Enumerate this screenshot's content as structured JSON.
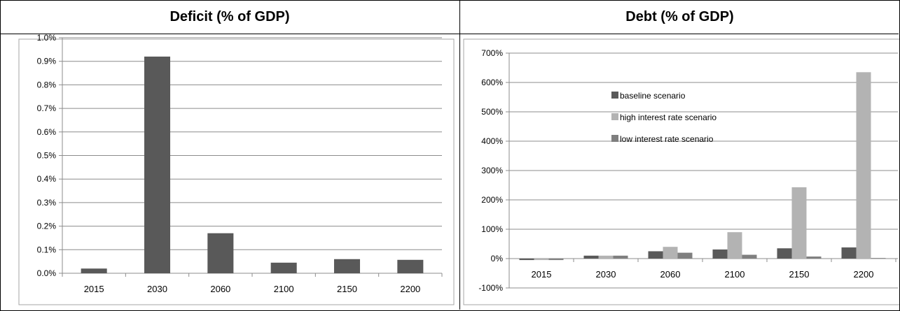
{
  "chart_data": [
    {
      "type": "bar",
      "title": "Deficit  (% of GDP)",
      "categories": [
        "2015",
        "2030",
        "2060",
        "2100",
        "2150",
        "2200"
      ],
      "values": [
        0.0002,
        0.0092,
        0.0017,
        0.00045,
        0.0006,
        0.00057
      ],
      "yticks": [
        "0.0%",
        "0.1%",
        "0.2%",
        "0.3%",
        "0.4%",
        "0.5%",
        "0.6%",
        "0.7%",
        "0.8%",
        "0.9%",
        "1.0%"
      ],
      "ylim": [
        0,
        0.01
      ],
      "grid": true,
      "bar_color": "#595959"
    },
    {
      "type": "bar",
      "title": "Debt (% of GDP)",
      "categories": [
        "2015",
        "2030",
        "2060",
        "2100",
        "2150",
        "2200"
      ],
      "series": [
        {
          "name": "baseline scenario",
          "color": "#595959",
          "values": [
            -0.05,
            0.1,
            0.25,
            0.31,
            0.35,
            0.38
          ]
        },
        {
          "name": "high interest rate scenario",
          "color": "#b3b3b3",
          "values": [
            -0.05,
            0.1,
            0.4,
            0.9,
            2.43,
            6.35
          ]
        },
        {
          "name": "low interest rate scenario",
          "color": "#7f7f7f",
          "values": [
            -0.05,
            0.1,
            0.2,
            0.13,
            0.07,
            0.02
          ]
        }
      ],
      "yticks": [
        "-100%",
        "0%",
        "100%",
        "200%",
        "300%",
        "400%",
        "500%",
        "600%",
        "700%"
      ],
      "ylim": [
        -1,
        7
      ],
      "grid": true,
      "legend_position": "top-left inside plot"
    }
  ]
}
